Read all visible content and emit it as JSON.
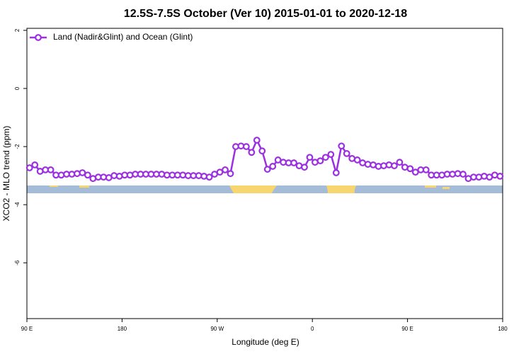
{
  "chart_data": {
    "type": "line",
    "title": "12.5S-7.5S October (Ver 10)   2015-01-01 to 2020-12-18",
    "x_label": "Longitude (deg E)",
    "y_label": "XCO2 - MLO trend (ppm)",
    "x": [
      92.5,
      97.5,
      102.5,
      107.5,
      112.5,
      117.5,
      122.5,
      127.5,
      132.5,
      137.5,
      142.5,
      147.5,
      152.5,
      157.5,
      162.5,
      167.5,
      172.5,
      177.5,
      182.5,
      187.5,
      192.5,
      197.5,
      202.5,
      207.5,
      212.5,
      217.5,
      222.5,
      227.5,
      232.5,
      237.5,
      242.5,
      247.5,
      252.5,
      257.5,
      262.5,
      267.5,
      272.5,
      277.5,
      282.5,
      287.5,
      292.5,
      297.5,
      302.5,
      307.5,
      312.5,
      317.5,
      322.5,
      327.5,
      332.5,
      337.5,
      342.5,
      347.5,
      352.5,
      357.5,
      362.5,
      367.5,
      372.5,
      377.5,
      382.5,
      387.5,
      392.5,
      397.5,
      402.5,
      407.5,
      412.5,
      417.5,
      422.5,
      427.5,
      432.5,
      437.5,
      442.5,
      447.5,
      452.5,
      457.5,
      462.5,
      467.5,
      472.5,
      477.5,
      482.5,
      487.5,
      492.5,
      497.5,
      502.5,
      507.5,
      512.5,
      517.5,
      522.5,
      527.5,
      532.5,
      537.5
    ],
    "series": [
      {
        "name": "Land (Nadir&Glint) and Ocean (Glint)",
        "color": "#9b30e0",
        "values": [
          -2.73,
          -2.63,
          -2.85,
          -2.8,
          -2.8,
          -2.98,
          -2.98,
          -2.95,
          -2.95,
          -2.93,
          -2.9,
          -2.98,
          -3.1,
          -3.05,
          -3.05,
          -3.07,
          -3.0,
          -3.02,
          -2.98,
          -2.98,
          -2.95,
          -2.95,
          -2.95,
          -2.95,
          -2.95,
          -2.95,
          -2.98,
          -2.98,
          -2.98,
          -2.98,
          -3.0,
          -3.0,
          -3.0,
          -3.02,
          -3.05,
          -2.95,
          -2.88,
          -2.8,
          -2.93,
          -2.0,
          -1.98,
          -2.0,
          -2.2,
          -1.78,
          -2.15,
          -2.78,
          -2.68,
          -2.46,
          -2.54,
          -2.56,
          -2.56,
          -2.66,
          -2.71,
          -2.37,
          -2.54,
          -2.49,
          -2.37,
          -2.27,
          -2.9,
          -1.98,
          -2.24,
          -2.41,
          -2.46,
          -2.56,
          -2.61,
          -2.63,
          -2.68,
          -2.66,
          -2.63,
          -2.66,
          -2.54,
          -2.71,
          -2.76,
          -2.88,
          -2.8,
          -2.8,
          -2.98,
          -2.98,
          -2.98,
          -2.95,
          -2.95,
          -2.93,
          -2.95,
          -3.1,
          -3.05,
          -3.05,
          -3.02,
          -3.05,
          -2.98,
          -3.02
        ]
      }
    ],
    "xlim": [
      90,
      540
    ],
    "xticks": [
      {
        "value": 90,
        "label": "90 E"
      },
      180,
      {
        "value": 270,
        "label": "90 W"
      },
      {
        "value": 360,
        "label": "0"
      },
      {
        "value": 450,
        "label": "90 E"
      },
      {
        "value": 540,
        "label": "180"
      }
    ],
    "ylim": [
      -7.92,
      2.07
    ],
    "yticks": [
      2,
      0,
      -2,
      -4,
      -6
    ],
    "legend": "top-left"
  }
}
